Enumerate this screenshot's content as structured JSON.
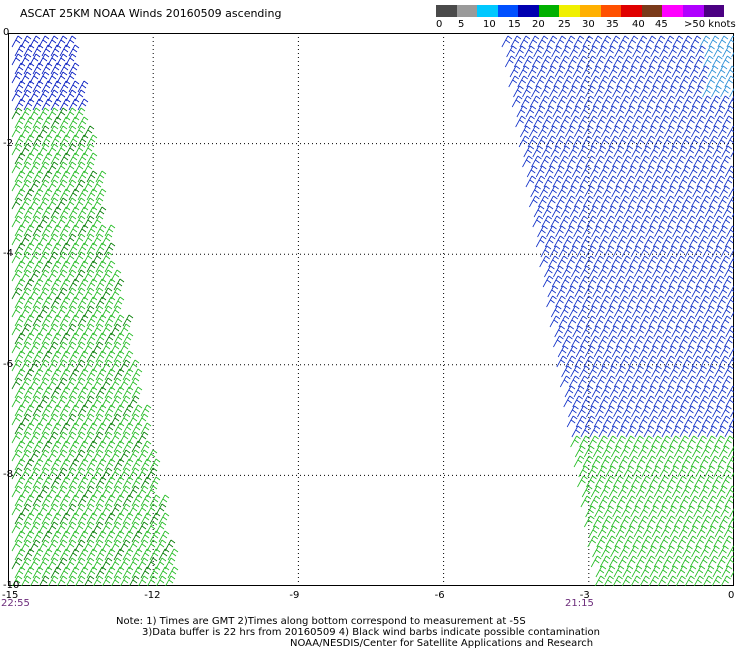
{
  "title": "ASCAT 25KM NOAA Winds 20160509 ascending",
  "legend": {
    "colors": [
      "#4a4a4a",
      "#9a9a9a",
      "#00c8ff",
      "#0050ff",
      "#0000b0",
      "#00b000",
      "#f0f000",
      "#ffb000",
      "#ff5000",
      "#e00000",
      "#7a3a1a",
      "#ff00ff",
      "#b000ff",
      "#4b0082"
    ],
    "labels": [
      "0",
      "5",
      "10",
      "15",
      "20",
      "25",
      "30",
      "35",
      "40",
      "45",
      ">50 knots"
    ]
  },
  "map": {
    "x_ticks": [
      "-15",
      "-12",
      "-9",
      "-6",
      "-3",
      "0"
    ],
    "y_ticks": [
      "0",
      "-2",
      "-4",
      "-6",
      "-8",
      "-10"
    ],
    "xlim": [
      -15,
      0
    ],
    "ylim": [
      -10,
      0
    ],
    "grid": true,
    "time_left": "22:55",
    "time_right": "21:15"
  },
  "notes": {
    "line1": "Note: 1) Times are GMT 2)Times along bottom correspond to measurement at -5S",
    "line2": "3)Data buffer is 22 hrs from 20160509 4) Black wind barbs indicate possible contamination",
    "line3": "NOAA/NESDIS/Center for Satellite Applications and Research"
  }
}
